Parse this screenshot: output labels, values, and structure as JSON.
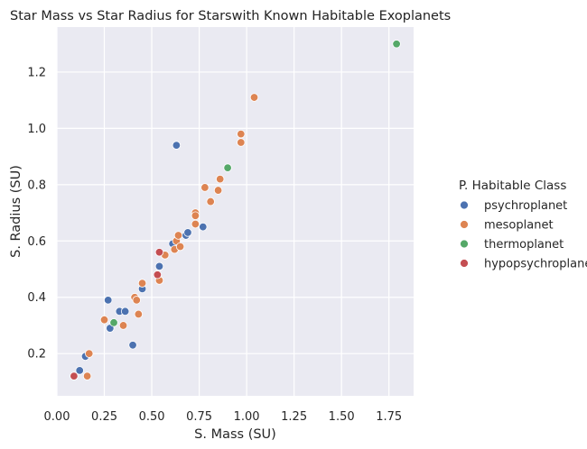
{
  "chart_data": {
    "type": "scatter",
    "title": "Star Mass vs Star Radius for Starswith Known Habitable Exoplanets",
    "xlabel": "S. Mass (SU)",
    "ylabel": "S. Radius (SU)",
    "xlim": [
      0.0,
      1.88
    ],
    "ylim": [
      0.05,
      1.36
    ],
    "xticks": [
      0.0,
      0.25,
      0.5,
      0.75,
      1.0,
      1.25,
      1.5,
      1.75
    ],
    "xtick_labels": [
      "0.00",
      "0.25",
      "0.50",
      "0.75",
      "1.00",
      "1.25",
      "1.50",
      "1.75"
    ],
    "yticks": [
      0.2,
      0.4,
      0.6,
      0.8,
      1.0,
      1.2
    ],
    "ytick_labels": [
      "0.2",
      "0.4",
      "0.6",
      "0.8",
      "1.0",
      "1.2"
    ],
    "grid": true,
    "legend": {
      "title": "P. Habitable Class",
      "placement": "right"
    },
    "series": [
      {
        "name": "psychroplanet",
        "color": "#4c72b0",
        "points": [
          [
            0.63,
            0.94
          ],
          [
            0.12,
            0.14
          ],
          [
            0.15,
            0.19
          ],
          [
            0.27,
            0.39
          ],
          [
            0.28,
            0.29
          ],
          [
            0.33,
            0.35
          ],
          [
            0.36,
            0.35
          ],
          [
            0.4,
            0.23
          ],
          [
            0.45,
            0.43
          ],
          [
            0.54,
            0.51
          ],
          [
            0.61,
            0.59
          ],
          [
            0.68,
            0.62
          ],
          [
            0.69,
            0.63
          ],
          [
            0.77,
            0.65
          ]
        ]
      },
      {
        "name": "mesoplanet",
        "color": "#dd8452",
        "points": [
          [
            0.16,
            0.12
          ],
          [
            0.17,
            0.2
          ],
          [
            0.25,
            0.32
          ],
          [
            0.35,
            0.3
          ],
          [
            0.41,
            0.4
          ],
          [
            0.42,
            0.39
          ],
          [
            0.43,
            0.34
          ],
          [
            0.45,
            0.45
          ],
          [
            0.54,
            0.46
          ],
          [
            0.57,
            0.55
          ],
          [
            0.62,
            0.57
          ],
          [
            0.63,
            0.6
          ],
          [
            0.64,
            0.62
          ],
          [
            0.65,
            0.58
          ],
          [
            0.73,
            0.7
          ],
          [
            0.73,
            0.69
          ],
          [
            0.73,
            0.66
          ],
          [
            0.78,
            0.79
          ],
          [
            0.81,
            0.74
          ],
          [
            0.85,
            0.78
          ],
          [
            0.86,
            0.82
          ],
          [
            0.97,
            0.95
          ],
          [
            0.97,
            0.98
          ],
          [
            1.04,
            1.11
          ]
        ]
      },
      {
        "name": "thermoplanet",
        "color": "#55a868",
        "points": [
          [
            0.3,
            0.31
          ],
          [
            0.9,
            0.86
          ],
          [
            1.79,
            1.3
          ]
        ]
      },
      {
        "name": "hypopsychroplanet",
        "color": "#c44e52",
        "points": [
          [
            0.09,
            0.12
          ],
          [
            0.53,
            0.48
          ],
          [
            0.54,
            0.56
          ]
        ]
      }
    ]
  }
}
